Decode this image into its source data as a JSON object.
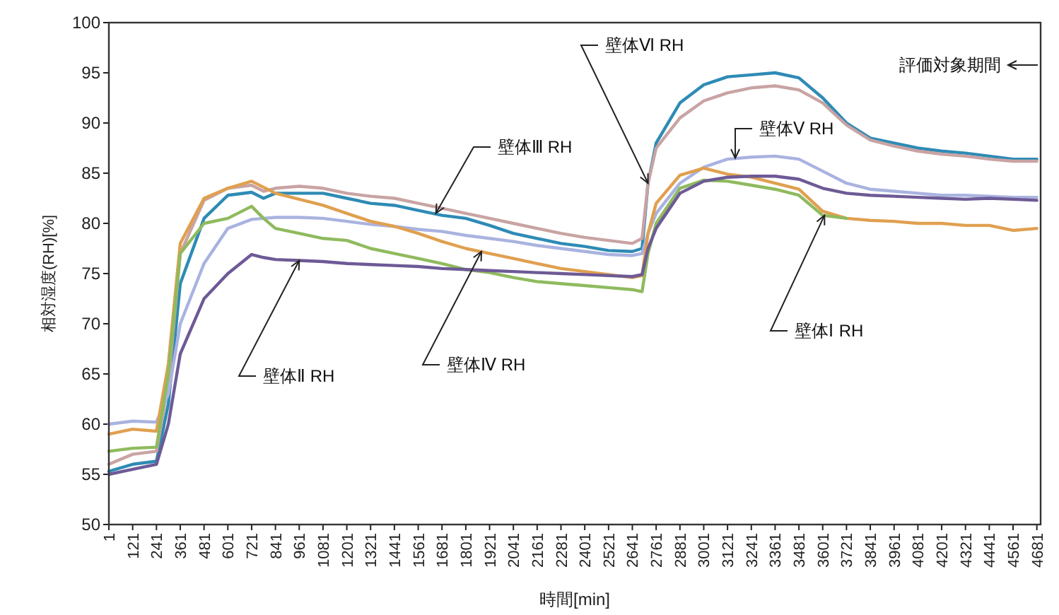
{
  "chart_data": {
    "type": "line",
    "xlabel": "時間[min]",
    "ylabel": "相対湿度(RH)[%]",
    "x": [
      1,
      121,
      241,
      301,
      361,
      481,
      601,
      721,
      781,
      841,
      961,
      1081,
      1201,
      1321,
      1441,
      1561,
      1681,
      1801,
      1921,
      2041,
      2161,
      2281,
      2401,
      2521,
      2641,
      2690,
      2720,
      2761,
      2881,
      3001,
      3121,
      3241,
      3361,
      3481,
      3601,
      3721,
      3841,
      3961,
      4081,
      4201,
      4321,
      4441,
      4561,
      4681
    ],
    "xlim": [
      1,
      4700
    ],
    "xticks": [
      1,
      121,
      241,
      361,
      481,
      601,
      721,
      841,
      961,
      1081,
      1201,
      1321,
      1441,
      1561,
      1681,
      1801,
      1921,
      2041,
      2161,
      2281,
      2401,
      2521,
      2641,
      2761,
      2881,
      3001,
      3121,
      3241,
      3361,
      3481,
      3601,
      3721,
      3841,
      3961,
      4081,
      4201,
      4321,
      4441,
      4561,
      4681
    ],
    "ylim": [
      50,
      100
    ],
    "yticks": [
      50,
      55,
      60,
      65,
      70,
      75,
      80,
      85,
      90,
      95,
      100
    ],
    "series": [
      {
        "color": "#2e8bb5",
        "values": [
          55.3,
          56,
          56.3,
          62,
          74,
          80.5,
          82.8,
          83.1,
          82.5,
          83,
          83,
          83,
          82.5,
          82,
          81.8,
          81.3,
          80.8,
          80.5,
          79.8,
          79,
          78.5,
          78,
          77.7,
          77.3,
          77.2,
          77.5,
          84,
          88,
          92,
          93.8,
          94.6,
          94.8,
          95,
          94.5,
          92.5,
          90,
          88.5,
          88,
          87.5,
          87.2,
          87,
          86.7,
          86.4,
          86.4
        ]
      },
      {
        "color": "#c9a3a3",
        "values": [
          56,
          57,
          57.3,
          64,
          77,
          82.3,
          83.5,
          83.8,
          83.2,
          83.5,
          83.7,
          83.5,
          83,
          82.7,
          82.5,
          82,
          81.5,
          81,
          80.5,
          80,
          79.5,
          79,
          78.6,
          78.3,
          78,
          78.5,
          84,
          87.5,
          90.5,
          92.2,
          93,
          93.5,
          93.7,
          93.3,
          92,
          89.8,
          88.3,
          87.7,
          87.2,
          86.9,
          86.7,
          86.4,
          86.2,
          86.2
        ]
      },
      {
        "color": "#a9b3e0",
        "values": [
          60,
          60.3,
          60.2,
          63,
          70,
          76,
          79.5,
          80.4,
          80.5,
          80.6,
          80.6,
          80.5,
          80.2,
          79.9,
          79.7,
          79.4,
          79.2,
          78.8,
          78.5,
          78.2,
          77.8,
          77.5,
          77.2,
          76.9,
          76.8,
          77,
          79,
          81,
          84,
          85.6,
          86.4,
          86.6,
          86.7,
          86.4,
          85.2,
          84,
          83.4,
          83.2,
          83,
          82.8,
          82.8,
          82.7,
          82.6,
          82.6
        ]
      },
      {
        "color": "#e0a050",
        "values": [
          59,
          59.5,
          59.3,
          66,
          78,
          82.5,
          83.5,
          84.2,
          83.6,
          83,
          82.4,
          81.8,
          81,
          80.2,
          79.7,
          79,
          78.2,
          77.5,
          77,
          76.5,
          76,
          75.5,
          75.2,
          74.9,
          74.6,
          74.8,
          79,
          82,
          84.8,
          85.5,
          84.9,
          84.6,
          84,
          83.4,
          81.2,
          80.5,
          80.3,
          80.2,
          80,
          80,
          79.8,
          79.8,
          79.3,
          79.5
        ]
      },
      {
        "color": "#8fba5e",
        "values": [
          57.3,
          57.6,
          57.7,
          65,
          77,
          80,
          80.5,
          81.7,
          80.5,
          79.5,
          79,
          78.5,
          78.3,
          77.5,
          77,
          76.5,
          76,
          75.4,
          75.1,
          74.6,
          74.2,
          74,
          73.8,
          73.6,
          73.4,
          73.2,
          77,
          80,
          83.5,
          84.3,
          84.2,
          83.8,
          83.4,
          82.8,
          80.8,
          80.5,
          null,
          null,
          null,
          null,
          null,
          null,
          null,
          null
        ]
      },
      {
        "color": "#6d5a96",
        "values": [
          55,
          55.5,
          56,
          60,
          67,
          72.5,
          75,
          76.9,
          76.6,
          76.4,
          76.3,
          76.2,
          76,
          75.9,
          75.8,
          75.7,
          75.5,
          75.4,
          75.3,
          75.2,
          75.1,
          75,
          74.9,
          74.8,
          74.7,
          74.9,
          77.5,
          79.5,
          83,
          84.2,
          84.6,
          84.7,
          84.7,
          84.4,
          83.5,
          83,
          82.8,
          82.7,
          82.6,
          82.5,
          82.4,
          82.5,
          82.4,
          82.3
        ]
      }
    ],
    "annotations": [
      {
        "text": "壁体Ⅵ RH",
        "x": 2720,
        "y": 84
      },
      {
        "text": "壁体Ⅲ RH",
        "x": 1650,
        "y": 81
      },
      {
        "text": "壁体Ⅴ RH",
        "x": 3160,
        "y": 86.5
      },
      {
        "text": "壁体Ⅱ RH",
        "x": 961,
        "y": 76.3
      },
      {
        "text": "壁体Ⅳ RH",
        "x": 1880,
        "y": 77.2
      },
      {
        "text": "壁体Ⅰ RH",
        "x": 3610,
        "y": 80.8
      },
      "評価対象期間"
    ]
  }
}
